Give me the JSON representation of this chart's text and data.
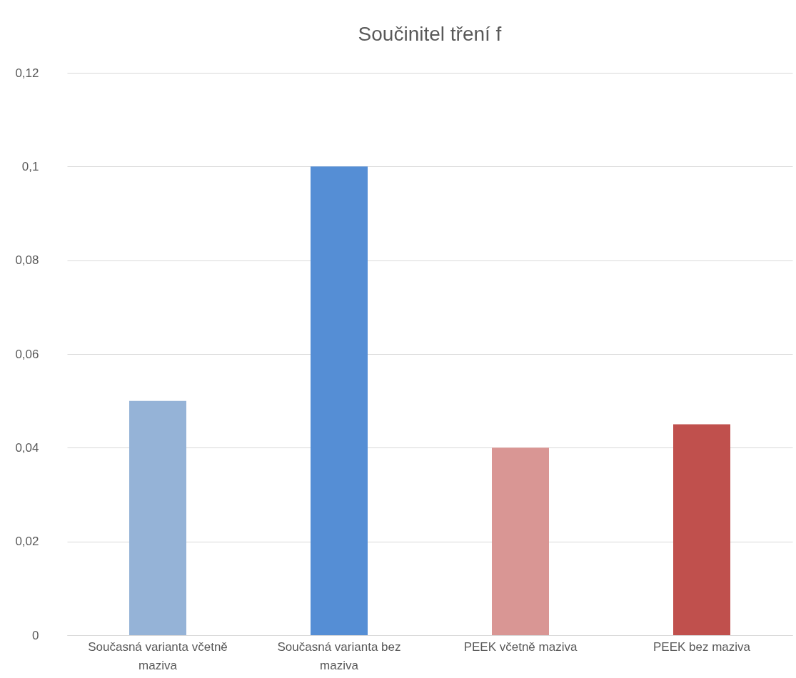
{
  "chart_data": {
    "type": "bar",
    "title": "Součinitel tření f",
    "categories": [
      "Současná varianta včetně maziva",
      "Současná varianta bez maziva",
      "PEEK včetně maziva",
      "PEEK bez maziva"
    ],
    "values": [
      0.05,
      0.1,
      0.04,
      0.045
    ],
    "colors": [
      "#95b3d7",
      "#558ed5",
      "#d99694",
      "#c0504d"
    ],
    "ylim": [
      0,
      0.12
    ],
    "yticks": [
      0,
      {
        "value": 0.02,
        "label": "0,02"
      },
      {
        "value": 0.04,
        "label": "0,04"
      },
      {
        "value": 0.06,
        "label": "0,06"
      },
      {
        "value": 0.08,
        "label": "0,08"
      },
      {
        "value": 0.1,
        "label": "0,1"
      },
      {
        "value": 0.12,
        "label": "0,12"
      }
    ],
    "grid": "y",
    "legend": false
  }
}
